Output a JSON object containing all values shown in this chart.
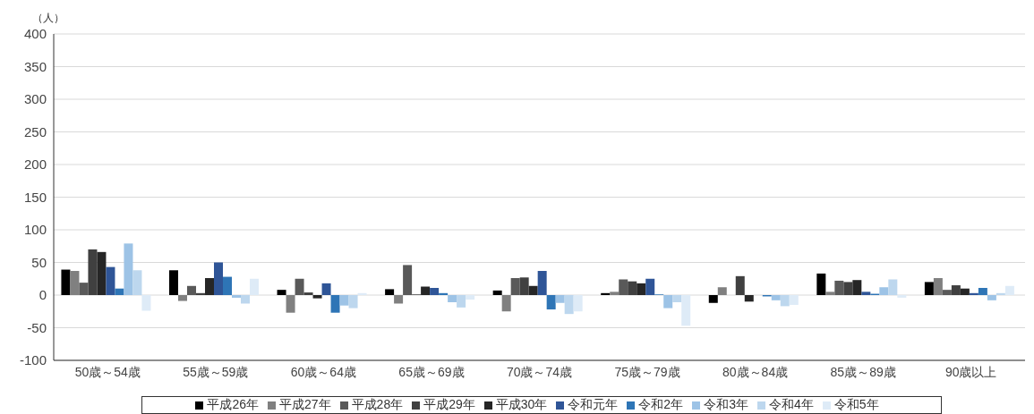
{
  "chart_data": {
    "type": "bar",
    "ylabel": "（人）",
    "categories": [
      "50歳～54歳",
      "55歳～59歳",
      "60歳～64歳",
      "65歳～69歳",
      "70歳～74歳",
      "75歳～79歳",
      "80歳～84歳",
      "85歳～89歳",
      "90歳以上"
    ],
    "series": [
      {
        "name": "平成26年",
        "color": "#000000",
        "values": [
          39,
          38,
          8,
          9,
          7,
          3,
          -12,
          33,
          20
        ]
      },
      {
        "name": "平成27年",
        "color": "#808080",
        "values": [
          37,
          -9,
          -27,
          -13,
          -25,
          5,
          12,
          5,
          26
        ]
      },
      {
        "name": "平成28年",
        "color": "#595959",
        "values": [
          19,
          14,
          25,
          46,
          26,
          24,
          0,
          22,
          8
        ]
      },
      {
        "name": "平成29年",
        "color": "#404040",
        "values": [
          70,
          3,
          4,
          1,
          27,
          21,
          29,
          20,
          15
        ]
      },
      {
        "name": "平成30年",
        "color": "#262626",
        "values": [
          66,
          26,
          -5,
          13,
          14,
          18,
          -10,
          23,
          10
        ]
      },
      {
        "name": "令和元年",
        "color": "#2f5597",
        "values": [
          43,
          50,
          18,
          11,
          37,
          25,
          0,
          5,
          3
        ]
      },
      {
        "name": "令和2年",
        "color": "#2e75b6",
        "values": [
          10,
          28,
          -27,
          3,
          -22,
          1,
          -2,
          2,
          11
        ]
      },
      {
        "name": "令和3年",
        "color": "#9dc3e6",
        "values": [
          79,
          -4,
          -16,
          -11,
          -12,
          -20,
          -8,
          12,
          -8
        ]
      },
      {
        "name": "令和4年",
        "color": "#bdd7ee",
        "values": [
          38,
          -13,
          -20,
          -19,
          -29,
          -11,
          -17,
          24,
          3
        ]
      },
      {
        "name": "令和5年",
        "color": "#deebf7",
        "values": [
          -24,
          25,
          3,
          -7,
          -25,
          -47,
          -15,
          -4,
          14
        ]
      }
    ],
    "ylim": [
      -100,
      400
    ],
    "yticks": [
      -100,
      -50,
      0,
      50,
      100,
      150,
      200,
      250,
      300,
      350,
      400
    ],
    "grid": "y",
    "legend": "bottom"
  }
}
